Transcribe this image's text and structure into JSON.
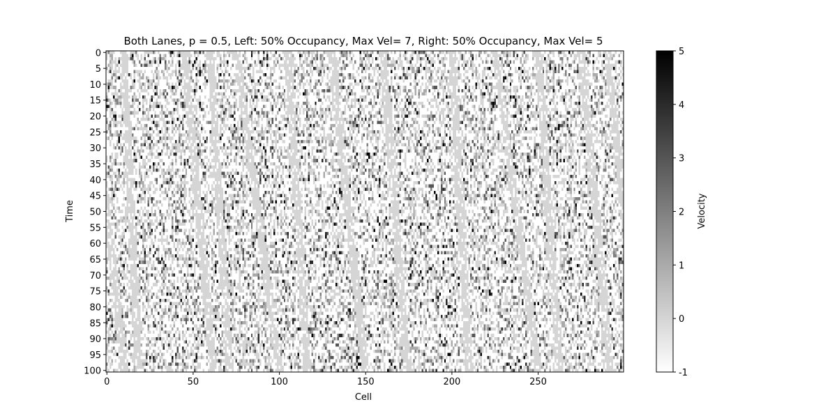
{
  "chart_data": {
    "type": "heatmap",
    "title": "Both Lanes, p = 0.5, Left: 50% Occupancy, Max Vel= 7, Right: 50% Occupancy, Max Vel= 5",
    "xlabel": "Cell",
    "ylabel": "Time",
    "x_ticks": [
      0,
      50,
      100,
      150,
      200,
      250
    ],
    "y_ticks": [
      0,
      5,
      10,
      15,
      20,
      25,
      30,
      35,
      40,
      45,
      50,
      55,
      60,
      65,
      70,
      75,
      80,
      85,
      90,
      95,
      100
    ],
    "xlim": [
      0,
      299
    ],
    "ylim": [
      100,
      0
    ],
    "colorbar": {
      "label": "Velocity",
      "ticks": [
        -1,
        0,
        1,
        2,
        3,
        4,
        5
      ],
      "vmin": -1,
      "vmax": 5,
      "colormap": "gray_r"
    },
    "empty_value": -1,
    "lane_occupancy": [
      0.5,
      0.5
    ],
    "lane_max_velocity": [
      7,
      5
    ],
    "slowdown_probability": 0.5,
    "cells": 300,
    "time_steps": 101
  }
}
